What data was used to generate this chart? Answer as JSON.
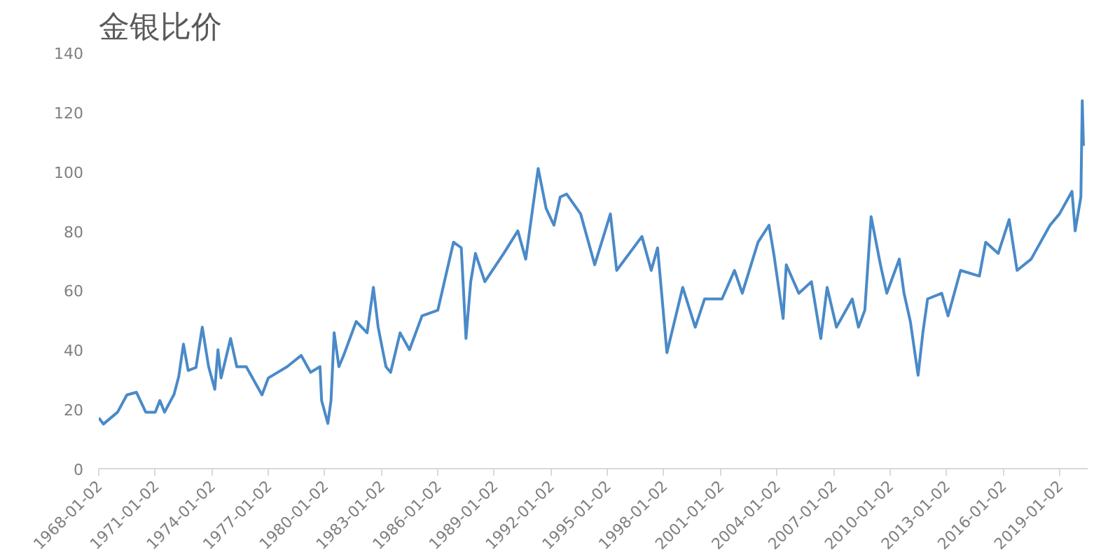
{
  "chart_data": {
    "type": "line",
    "title": "金银比价",
    "x": [
      "1968-01-02",
      "1968-04",
      "1969-01",
      "1969-07",
      "1970-01",
      "1970-07",
      "1971-01",
      "1971-04",
      "1971-07",
      "1972-01",
      "1972-04",
      "1972-07",
      "1972-10",
      "1973-03",
      "1973-07",
      "1973-11",
      "1974-03",
      "1974-05",
      "1974-07",
      "1975-01",
      "1975-05",
      "1975-11",
      "1976-09",
      "1977-01",
      "1978-01",
      "1978-10",
      "1979-04",
      "1979-10",
      "1979-11",
      "1980-03",
      "1980-05",
      "1980-07",
      "1980-10",
      "1981-01",
      "1981-09",
      "1982-04",
      "1982-08",
      "1982-11",
      "1983-04",
      "1983-07",
      "1984-01",
      "1984-07",
      "1985-03",
      "1986-01",
      "1986-11",
      "1987-04",
      "1987-07",
      "1987-10",
      "1988-01",
      "1988-07",
      "1989-07",
      "1990-04",
      "1990-09",
      "1991-05",
      "1991-10",
      "1992-03",
      "1992-07",
      "1992-11",
      "1993-08",
      "1994-05",
      "1995-03",
      "1995-07",
      "1996-11",
      "1997-05",
      "1997-09",
      "1998-03",
      "1999-01",
      "1999-09",
      "2000-03",
      "2001-02",
      "2001-10",
      "2002-03",
      "2003-01",
      "2003-08",
      "2003-11",
      "2004-05",
      "2004-07",
      "2005-03",
      "2005-11",
      "2006-05",
      "2006-09",
      "2007-03",
      "2008-01",
      "2008-05",
      "2008-09",
      "2009-01",
      "2009-07",
      "2009-11",
      "2010-07",
      "2010-10",
      "2011-02",
      "2011-07",
      "2011-10",
      "2012-01",
      "2012-10",
      "2013-02",
      "2013-10",
      "2014-10",
      "2015-02",
      "2015-10",
      "2016-05",
      "2016-10",
      "2017-07",
      "2018-07",
      "2019-01",
      "2019-09",
      "2019-11",
      "2020-02-20",
      "2020-03-18",
      "2020-04-10"
    ],
    "series": [
      {
        "color": "#4a8ac8",
        "values": [
          17.1,
          15,
          19,
          24.8,
          25.7,
          19,
          19,
          22.9,
          19,
          25,
          31,
          41.9,
          33,
          34,
          47.6,
          34.3,
          26.7,
          40,
          30.5,
          43.8,
          34.3,
          34.3,
          24.8,
          30.5,
          34.3,
          38.1,
          32.4,
          34.3,
          22.9,
          15.2,
          22.9,
          45.7,
          34.3,
          38.1,
          49.5,
          45.7,
          61,
          47.6,
          34.3,
          32.4,
          45.7,
          40,
          51.4,
          53.3,
          76.2,
          74.3,
          43.8,
          62.9,
          72.4,
          62.9,
          72.4,
          80,
          70.5,
          101,
          87.6,
          81.9,
          91.4,
          92.4,
          85.7,
          68.6,
          85.7,
          66.7,
          78.1,
          66.7,
          74.3,
          39,
          61,
          47.6,
          57.1,
          57.1,
          66.7,
          59,
          76.2,
          81.9,
          72.4,
          50.5,
          68.6,
          59,
          62.9,
          43.8,
          61,
          47.6,
          57.1,
          47.6,
          53.3,
          84.8,
          68.6,
          59,
          70.5,
          59,
          49.5,
          31.4,
          45.7,
          57.1,
          59,
          51.4,
          66.7,
          64.8,
          76.2,
          72.4,
          83.8,
          66.7,
          70.5,
          81.9,
          85.7,
          93.3,
          80,
          91.4,
          123.8,
          108.6
        ]
      }
    ],
    "xlim": [
      "1968-01-02",
      "2020-07"
    ],
    "xticks": [
      "1968-01-02",
      "1971-01-02",
      "1974-01-02",
      "1977-01-02",
      "1980-01-02",
      "1983-01-02",
      "1986-01-02",
      "1989-01-02",
      "1992-01-02",
      "1995-01-02",
      "1998-01-02",
      "2001-01-02",
      "2004-01-02",
      "2007-01-02",
      "2010-01-02",
      "2013-01-02",
      "2016-01-02",
      "2019-01-02"
    ],
    "ylim": [
      0,
      140
    ],
    "yticks": [
      0,
      20,
      40,
      60,
      80,
      100,
      120,
      140
    ],
    "grid": false,
    "marker": "none",
    "line_style": "solid"
  }
}
